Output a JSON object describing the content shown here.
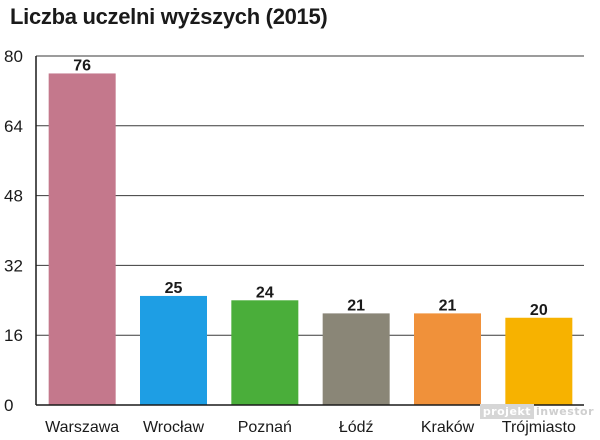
{
  "chart_data": {
    "type": "bar",
    "title": "Liczba uczelni wyższych (2015)",
    "categories": [
      "Warszawa",
      "Wrocław",
      "Poznań",
      "Łódź",
      "Kraków",
      "Trójmiasto"
    ],
    "values": [
      76,
      25,
      24,
      21,
      21,
      20
    ],
    "colors": [
      "#c4788c",
      "#1e9ee4",
      "#4aae3a",
      "#8a8677",
      "#f0913a",
      "#f7b200"
    ],
    "ylim": [
      0,
      80
    ],
    "yticks": [
      0,
      16,
      32,
      48,
      64,
      80
    ],
    "grid": true,
    "xlabel": "",
    "ylabel": ""
  },
  "watermark": {
    "part1": "projekt",
    "part2": "inwestor"
  }
}
